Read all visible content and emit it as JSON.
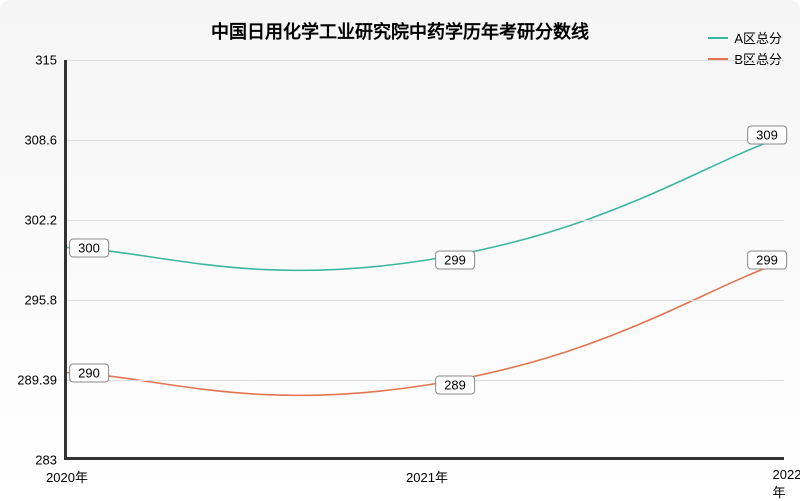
{
  "chart": {
    "type": "line",
    "title": "中国日用化学工业研究院中药学历年考研分数线",
    "title_fontsize": 18,
    "background_gradient": [
      "#f5f5f5",
      "#ffffff"
    ],
    "axis_color": "#333333",
    "grid_color": "#dddddd",
    "label_color": "#333333",
    "label_fontsize": 13,
    "ylim": [
      283,
      315
    ],
    "yticks": [
      283,
      289.39,
      295.8,
      302.2,
      308.6,
      315
    ],
    "xticks": [
      "2020年",
      "2021年",
      "2022年"
    ],
    "line_width": 1.6,
    "series": [
      {
        "name": "A区总分",
        "color": "#3bb6a0",
        "values": [
          300,
          299,
          309
        ],
        "smooth": true
      },
      {
        "name": "B区总分",
        "color": "#e4744e",
        "values": [
          290,
          289,
          299
        ],
        "smooth": true
      }
    ],
    "point_label_bg": "#ffffff",
    "point_label_border": "#888888"
  }
}
